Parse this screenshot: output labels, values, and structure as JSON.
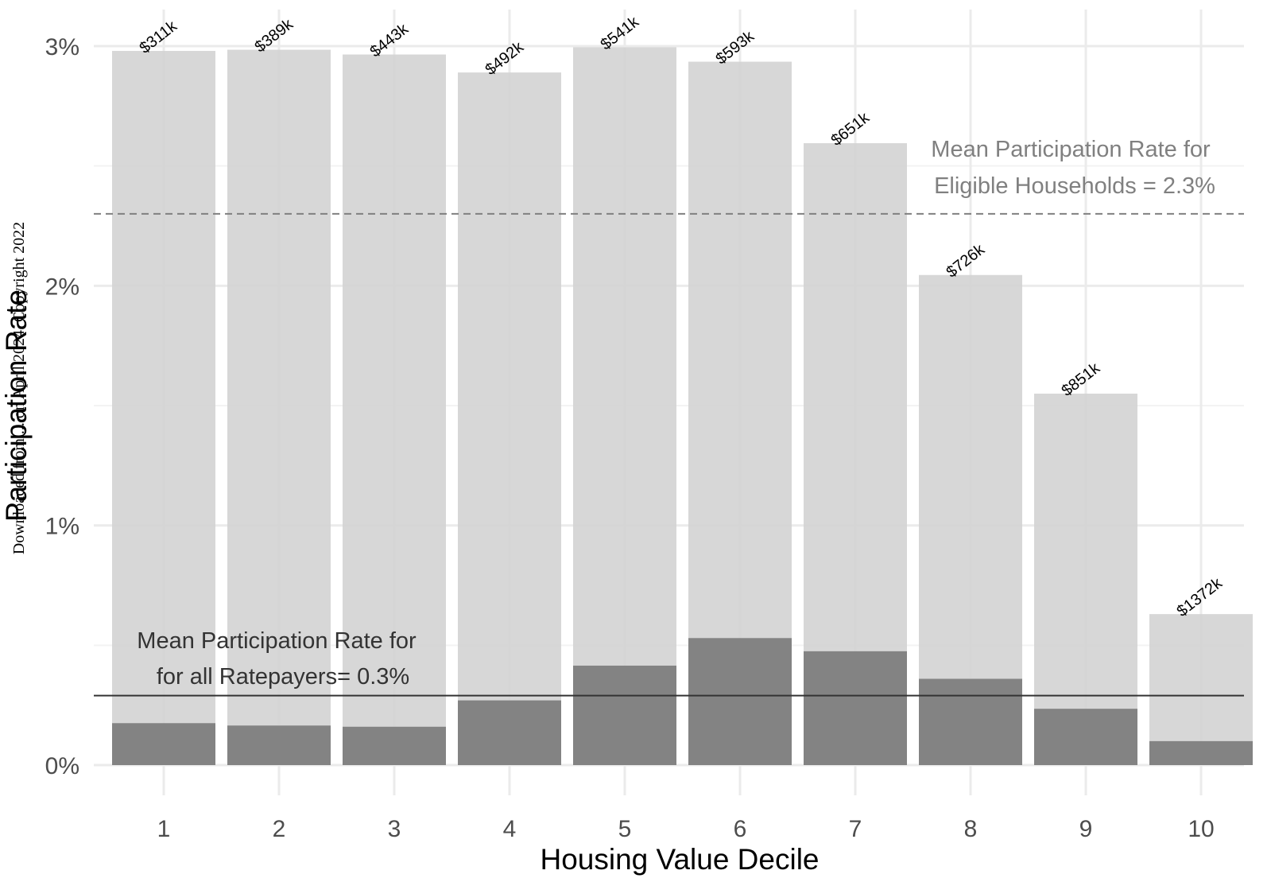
{
  "chart_data": {
    "type": "bar",
    "title": "",
    "xlabel": "Housing Value Decile",
    "ylabel": "Participation Rate",
    "categories": [
      "1",
      "2",
      "3",
      "4",
      "5",
      "6",
      "7",
      "8",
      "9",
      "10"
    ],
    "series": [
      {
        "name": "",
        "role": "eligible households",
        "values": [
          2.98,
          2.985,
          2.965,
          2.89,
          2.995,
          2.935,
          2.595,
          2.045,
          1.55,
          0.63
        ]
      },
      {
        "name": "",
        "role": "all ratepayers",
        "values": [
          0.175,
          0.165,
          0.16,
          0.27,
          0.415,
          0.53,
          0.475,
          0.36,
          0.235,
          0.1
        ]
      }
    ],
    "bar_labels": [
      "$311k",
      "$389k",
      "$443k",
      "$492k",
      "$541k",
      "$593k",
      "$651k",
      "$726k",
      "$851k",
      "$1372k"
    ],
    "y_ticks": [
      {
        "value": 0,
        "label": "0%"
      },
      {
        "value": 1,
        "label": "1%"
      },
      {
        "value": 2,
        "label": "2%"
      },
      {
        "value": 3,
        "label": "3%"
      }
    ],
    "ylim": [
      -0.15,
      3.15
    ],
    "reference_lines": [
      {
        "value": 2.3,
        "style": "dashed",
        "color": "#808080",
        "label_lines": [
          "Mean Participation Rate for",
          "Eligible Households = 2.3%"
        ]
      },
      {
        "value": 0.29,
        "style": "solid",
        "color": "#333333",
        "label_lines": [
          "Mean Participation Rate for",
          "for all Ratepayers= 0.3%"
        ]
      }
    ],
    "grid": true,
    "legend": "none",
    "colors": {
      "eligible_bar": "#d3d3d3",
      "all_bar": "#838383",
      "gridline": "#ebebeb",
      "gridline_minor": "#f3f3f3"
    }
  },
  "watermark": {
    "text": "Downloaded from ... on April 2024. Copyright 2022"
  }
}
